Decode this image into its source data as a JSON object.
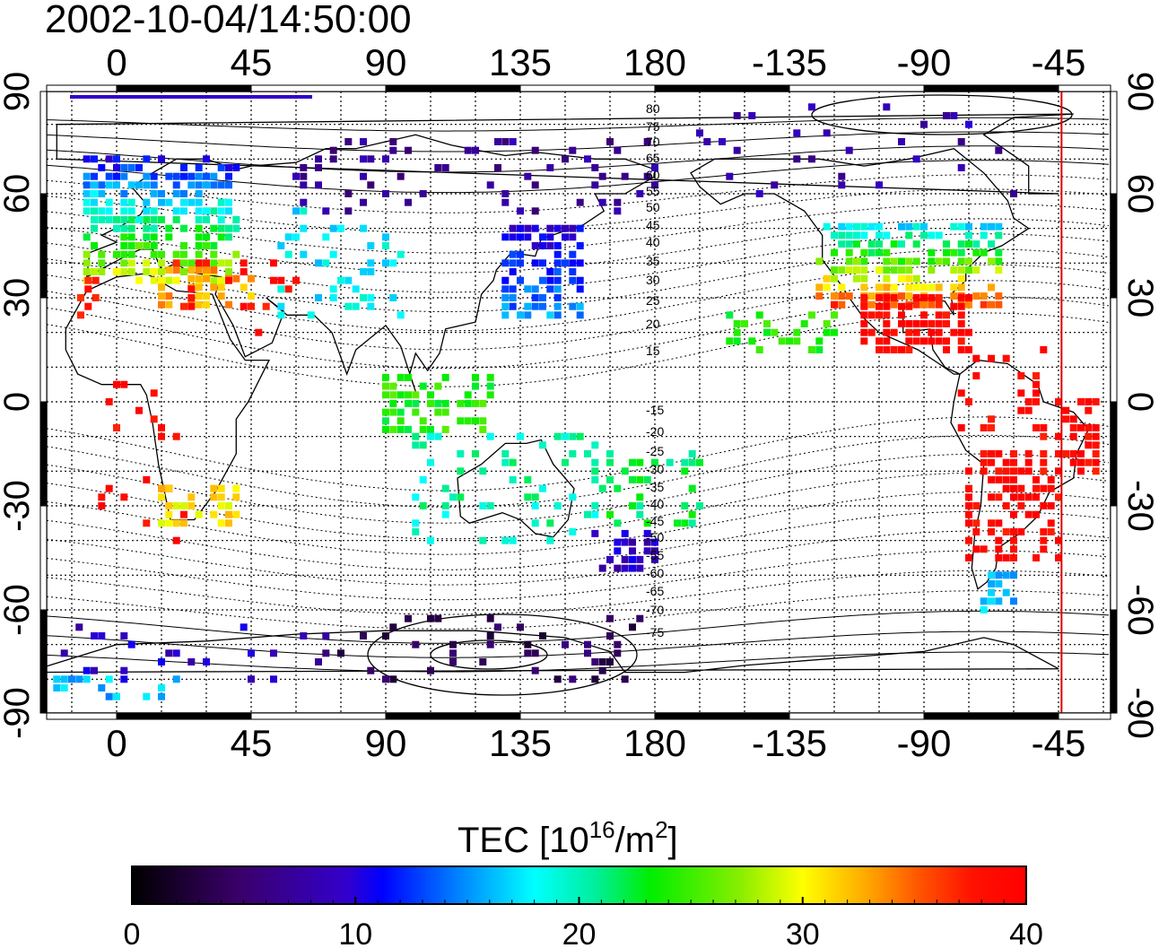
{
  "title": "2002-10-04/14:50:00",
  "lon_ticks_top": [
    "0",
    "45",
    "90",
    "135",
    "180",
    "-135",
    "-90",
    "-45"
  ],
  "lon_ticks_bottom": [
    "0",
    "45",
    "90",
    "135",
    "180",
    "-135",
    "-90",
    "-45"
  ],
  "lat_ticks_left": [
    "90",
    "60",
    "30",
    "0",
    "-30",
    "-60",
    "-90"
  ],
  "lat_ticks_right": [
    "90",
    "60",
    "30",
    "0",
    "-30",
    "-60",
    "-90"
  ],
  "mlat_labels": [
    "80",
    "75",
    "70",
    "65",
    "60",
    "55",
    "50",
    "45",
    "40",
    "35",
    "30",
    "25",
    "20",
    "15",
    "-15",
    "-20",
    "-25",
    "-30",
    "-35",
    "-40",
    "-45",
    "-50",
    "-55",
    "-60",
    "-65",
    "-70",
    "-75"
  ],
  "colorbar": {
    "title_main": "TEC  [10",
    "title_sup1": "16",
    "title_mid": "/m",
    "title_sup2": "2",
    "title_end": "]",
    "ticks": [
      "0",
      "10",
      "20",
      "30",
      "40"
    ],
    "range": [
      0,
      40
    ]
  },
  "terminator_longitude": -44,
  "colors": {
    "background": "#ffffff",
    "terminator": "#dd0000",
    "coastline": "#000000"
  }
}
